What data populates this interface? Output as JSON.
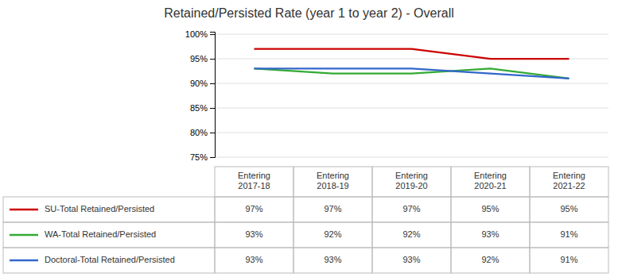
{
  "chart_data": {
    "type": "line",
    "title": "Retained/Persisted Rate (year 1 to year 2) - Overall",
    "categories": [
      "Entering\n2017-18",
      "Entering\n2018-19",
      "Entering\n2019-20",
      "Entering\n2020-21",
      "Entering\n2021-22"
    ],
    "series": [
      {
        "name": "SU-Total Retained/Persisted",
        "color": "#cc0000",
        "values": [
          0.97,
          0.97,
          0.97,
          0.95,
          0.95
        ],
        "value_labels": [
          "97%",
          "97%",
          "97%",
          "95%",
          "95%"
        ]
      },
      {
        "name": "WA-Total Retained/Persisted",
        "color": "#33aa33",
        "values": [
          0.93,
          0.92,
          0.92,
          0.93,
          0.91
        ],
        "value_labels": [
          "93%",
          "92%",
          "92%",
          "93%",
          "91%"
        ]
      },
      {
        "name": "Doctoral-Total Retained/Persisted",
        "color": "#3366cc",
        "values": [
          0.93,
          0.93,
          0.93,
          0.92,
          0.91
        ],
        "value_labels": [
          "93%",
          "93%",
          "93%",
          "92%",
          "91%"
        ]
      }
    ],
    "ylim": [
      0.75,
      1.005
    ],
    "yticks": [
      {
        "value": 0.75,
        "label": "75%"
      },
      {
        "value": 0.8,
        "label": "80%"
      },
      {
        "value": 0.85,
        "label": "85%"
      },
      {
        "value": 0.9,
        "label": "90%"
      },
      {
        "value": 0.95,
        "label": "95%"
      },
      {
        "value": 1.0,
        "label": "100%"
      }
    ],
    "grid": true,
    "tick_labels": "y"
  }
}
